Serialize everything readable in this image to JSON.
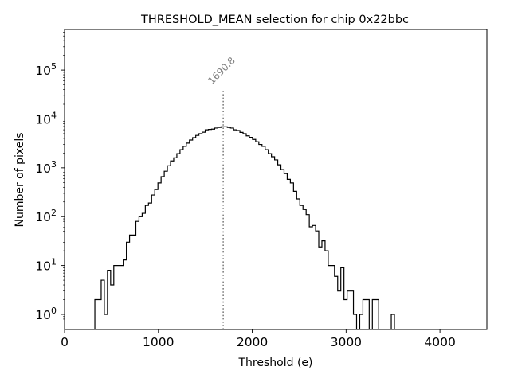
{
  "chart_data": {
    "type": "histogram",
    "title": "THRESHOLD_MEAN selection for chip 0x22bbc",
    "xlabel": "Threshold (e)",
    "ylabel": "Number of pixels",
    "xlim": [
      0,
      4500
    ],
    "ylim": [
      0.49,
      680000
    ],
    "yscale": "log",
    "xticks": [
      0,
      1000,
      2000,
      3000,
      4000
    ],
    "xtick_labels": [
      "0",
      "1000",
      "2000",
      "3000",
      "4000"
    ],
    "yticks": [
      1,
      10,
      100,
      1000,
      10000,
      100000
    ],
    "ytick_labels": [
      {
        "base": "10",
        "exp": "0"
      },
      {
        "base": "10",
        "exp": "1"
      },
      {
        "base": "10",
        "exp": "2"
      },
      {
        "base": "10",
        "exp": "3"
      },
      {
        "base": "10",
        "exp": "4"
      },
      {
        "base": "10",
        "exp": "5"
      }
    ],
    "grid": false,
    "bin_start": 323,
    "bin_width": 33.6,
    "counts": [
      2,
      2,
      5,
      1,
      8,
      4,
      10,
      10,
      10,
      13,
      30,
      42,
      42,
      80,
      100,
      117,
      170,
      190,
      277,
      360,
      490,
      660,
      850,
      1100,
      1380,
      1600,
      1950,
      2350,
      2750,
      3200,
      3700,
      4150,
      4600,
      5000,
      5350,
      6000,
      6100,
      6200,
      6500,
      6700,
      6900,
      6900,
      6700,
      6500,
      6000,
      5800,
      5300,
      5000,
      4500,
      4200,
      3800,
      3400,
      3000,
      2750,
      2350,
      1950,
      1680,
      1450,
      1150,
      920,
      760,
      580,
      490,
      330,
      230,
      170,
      140,
      110,
      62,
      66,
      51,
      24,
      32,
      20,
      10,
      10,
      6,
      3,
      9,
      2,
      3,
      3,
      1,
      0,
      1,
      2,
      2,
      0,
      2,
      2,
      0,
      0,
      0,
      0,
      1
    ],
    "annotations": [
      {
        "type": "vline",
        "x": 1690.8,
        "label": "1690.8",
        "style": "dotted",
        "color": "#808080",
        "ymax": 40000
      }
    ],
    "colors": {
      "histogram": "#000000",
      "vline": "#808080",
      "annotation_text": "#808080"
    }
  }
}
